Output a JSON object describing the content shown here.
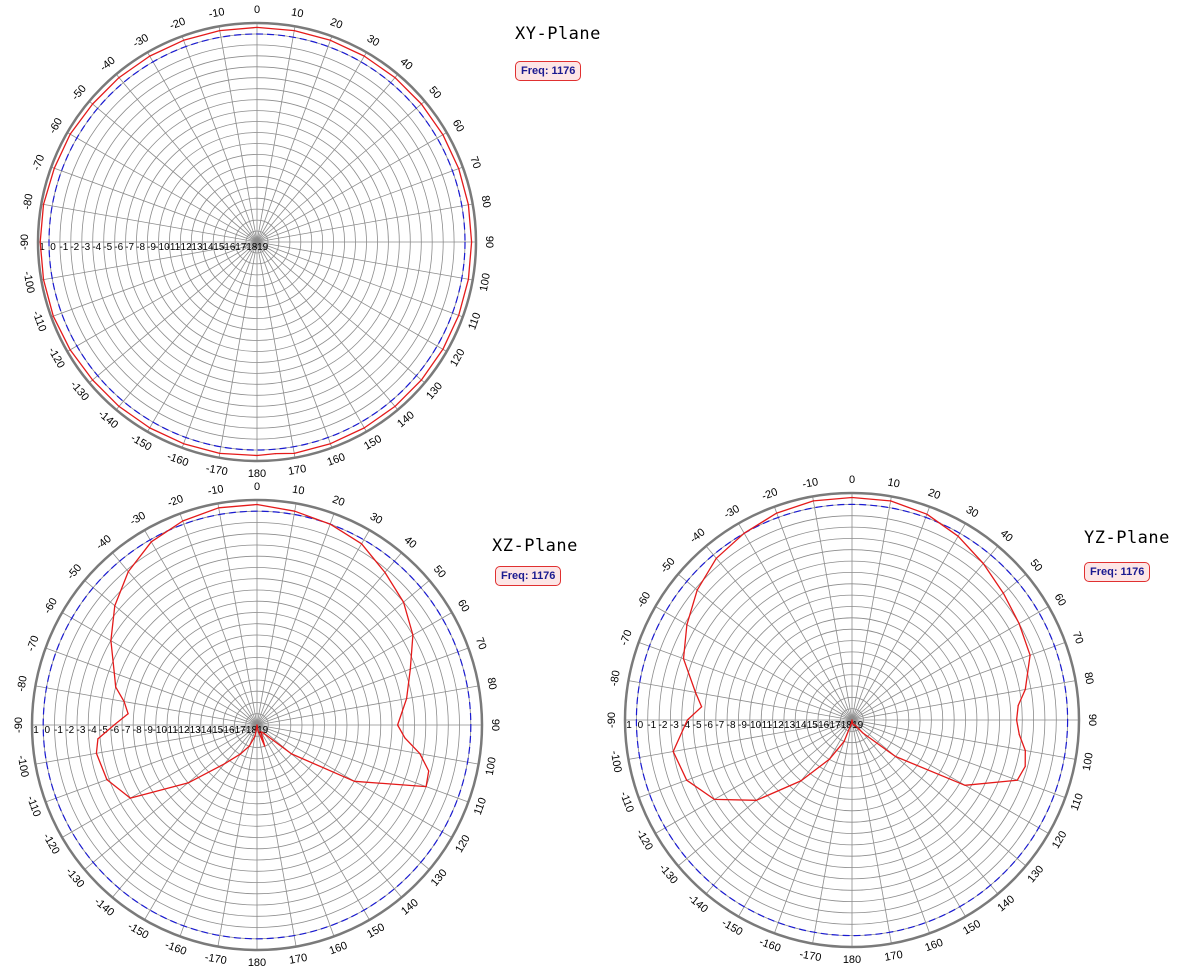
{
  "colors": {
    "pattern": "#e41a1a",
    "reference": "#1a1ad2",
    "grid": "#8c8c8c",
    "outer_ring": "#7a7a7a",
    "background": "#ffffff"
  },
  "radial_scale_labels": [
    "1",
    "0",
    "-1",
    "-2",
    "-3",
    "-4",
    "-5",
    "-6",
    "-7",
    "-8",
    "-9",
    "-10",
    "-11",
    "-12",
    "-13",
    "-14",
    "-15",
    "-16",
    "-17",
    "-18",
    "-19"
  ],
  "chart_data": [
    {
      "type": "polar-line",
      "title": "XY-Plane",
      "badge": "Freq: 1176",
      "angle_ticks": [
        0,
        10,
        20,
        30,
        40,
        50,
        60,
        70,
        80,
        90,
        100,
        110,
        120,
        130,
        140,
        150,
        160,
        170,
        180,
        -170,
        -160,
        -150,
        -140,
        -130,
        -120,
        -110,
        -100,
        -90,
        -80,
        -70,
        -60,
        -50,
        -40,
        -30,
        -20,
        -10
      ],
      "radial_range": [
        -19,
        1
      ],
      "reference_level": 0,
      "angles": [
        0,
        10,
        20,
        30,
        40,
        50,
        60,
        70,
        80,
        90,
        100,
        110,
        120,
        130,
        140,
        150,
        160,
        170,
        175,
        180,
        -170,
        -160,
        -150,
        -140,
        -130,
        -120,
        -110,
        -100,
        -90,
        -80,
        -70,
        -60,
        -50,
        -40,
        -30,
        -20,
        -10
      ],
      "values": [
        0.6,
        0.6,
        0.6,
        0.6,
        0.6,
        0.6,
        0.6,
        0.6,
        0.6,
        0.6,
        0.6,
        0.6,
        0.6,
        0.6,
        0.6,
        0.6,
        0.6,
        0.6,
        0.4,
        0.5,
        0.6,
        0.6,
        0.6,
        0.6,
        0.6,
        0.7,
        0.8,
        0.8,
        0.8,
        0.8,
        0.7,
        0.7,
        0.6,
        0.6,
        0.6,
        0.6,
        0.6
      ]
    },
    {
      "type": "polar-line",
      "title": "XZ-Plane",
      "badge": "Freq: 1176",
      "angle_ticks": [
        0,
        10,
        20,
        30,
        40,
        50,
        60,
        70,
        80,
        90,
        100,
        110,
        120,
        130,
        140,
        150,
        160,
        170,
        180,
        -170,
        -160,
        -150,
        -140,
        -130,
        -120,
        -110,
        -100,
        -90,
        -80,
        -70,
        -60,
        -50,
        -40,
        -30,
        -20,
        -10
      ],
      "radial_range": [
        -19,
        1
      ],
      "reference_level": 0,
      "angles": [
        0,
        10,
        20,
        30,
        40,
        50,
        60,
        70,
        80,
        90,
        95,
        100,
        105,
        110,
        120,
        130,
        140,
        150,
        160,
        170,
        180,
        -170,
        -160,
        -150,
        -140,
        -130,
        -120,
        -110,
        -100,
        -95,
        -90,
        -85,
        -80,
        -75,
        -70,
        -60,
        -50,
        -40,
        -30,
        -20,
        -10
      ],
      "values": [
        0.6,
        0.3,
        0.0,
        -0.4,
        -1.3,
        -2.0,
        -3.0,
        -4.5,
        -5.5,
        -6.5,
        -5.8,
        -4.3,
        -3.2,
        -3.0,
        -9.0,
        -15.0,
        -18.0,
        -18.3,
        -17.0,
        -18.5,
        -19.0,
        -18.0,
        -17.0,
        -16.0,
        -14.5,
        -11.0,
        -6.0,
        -4.8,
        -4.5,
        -4.8,
        -6.3,
        -7.5,
        -7.0,
        -6.0,
        -5.5,
        -4.0,
        -2.5,
        -1.2,
        -0.2,
        0.3,
        0.6
      ]
    },
    {
      "type": "polar-line",
      "title": "YZ-Plane",
      "badge": "Freq: 1176",
      "angle_ticks": [
        0,
        10,
        20,
        30,
        40,
        50,
        60,
        70,
        80,
        90,
        100,
        110,
        120,
        130,
        140,
        150,
        160,
        170,
        180,
        -170,
        -160,
        -150,
        -140,
        -130,
        -120,
        -110,
        -100,
        -90,
        -80,
        -70,
        -60,
        -50,
        -40,
        -30,
        -20,
        -10
      ],
      "radial_range": [
        -19,
        1
      ],
      "reference_level": 0,
      "angles": [
        0,
        10,
        20,
        30,
        40,
        50,
        60,
        70,
        80,
        85,
        90,
        95,
        100,
        105,
        110,
        120,
        130,
        140,
        150,
        160,
        170,
        180,
        -170,
        -160,
        -150,
        -140,
        -130,
        -120,
        -110,
        -100,
        -90,
        -85,
        -80,
        -70,
        -60,
        -50,
        -40,
        -30,
        -20,
        -10
      ],
      "values": [
        0.6,
        0.6,
        0.3,
        -0.3,
        -1.0,
        -1.6,
        -2.0,
        -2.3,
        -3.5,
        -4.3,
        -4.5,
        -4.2,
        -3.5,
        -3.2,
        -3.5,
        -7.5,
        -14.0,
        -17.5,
        -18.5,
        -18.5,
        -18.7,
        -19.0,
        -18.7,
        -17.0,
        -15.0,
        -12.0,
        -8.0,
        -5.0,
        -3.5,
        -3.0,
        -4.5,
        -5.7,
        -5.0,
        -3.2,
        -2.2,
        -1.2,
        -0.4,
        0.0,
        0.4,
        0.6
      ]
    }
  ]
}
